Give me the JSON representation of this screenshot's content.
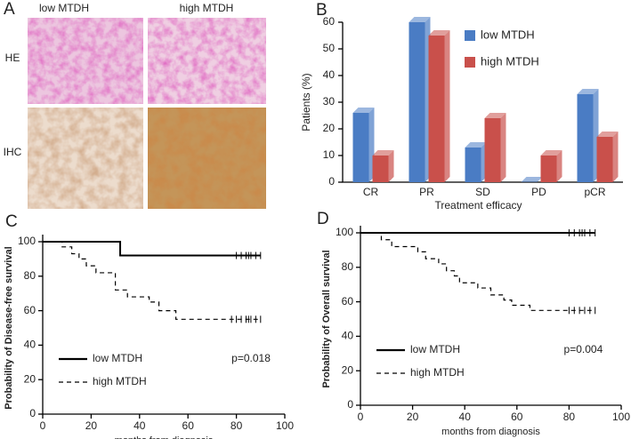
{
  "image_panel": {
    "panel_label": "A",
    "columns": [
      "low MTDH",
      "high MTDH"
    ],
    "rows": [
      "HE",
      "IHC"
    ]
  },
  "chart_data": [
    {
      "type": "bar",
      "panel_label": "B",
      "ylabel": "Patients (%)",
      "xlabel": "Treatment efficacy",
      "categories": [
        "CR",
        "PR",
        "SD",
        "PD",
        "pCR"
      ],
      "series": [
        {
          "name": "low MTDH",
          "color": "#4a7cc4",
          "values": [
            26,
            60,
            13,
            0,
            33
          ]
        },
        {
          "name": "high MTDH",
          "color": "#c9504b",
          "values": [
            10,
            55,
            24,
            10,
            17
          ]
        }
      ],
      "ylim": [
        0,
        60
      ],
      "yticks": [
        0,
        10,
        20,
        30,
        40,
        50,
        60
      ],
      "legend": "upper right"
    },
    {
      "type": "line",
      "panel_label": "C",
      "ylabel": "Probability of Disease-free survival",
      "xlabel": "months from diagnosis",
      "annotation": "p=0.018",
      "legend": "lower left",
      "xlim": [
        0,
        100
      ],
      "xticks": [
        0,
        20,
        40,
        60,
        80,
        100
      ],
      "ylim": [
        0,
        100
      ],
      "yticks": [
        0,
        20,
        40,
        60,
        80,
        100
      ],
      "series": [
        {
          "name": "low MTDH",
          "color": "#000000",
          "linestyle": "solid",
          "x": [
            0,
            32,
            32,
            90
          ],
          "values": [
            100,
            100,
            92,
            92
          ],
          "censored": {
            "x": [
              80,
              82,
              84,
              85,
              86,
              88,
              90
            ],
            "values": [
              92,
              92,
              92,
              92,
              92,
              92,
              92
            ]
          }
        },
        {
          "name": "high MTDH",
          "color": "#000000",
          "linestyle": "dashed",
          "x": [
            0,
            8,
            8,
            12,
            12,
            15,
            15,
            18,
            18,
            22,
            22,
            30,
            30,
            35,
            35,
            44,
            44,
            48,
            48,
            55,
            55,
            90
          ],
          "values": [
            100,
            100,
            97,
            97,
            93,
            93,
            90,
            90,
            86,
            86,
            82,
            82,
            72,
            72,
            68,
            68,
            65,
            65,
            60,
            60,
            55,
            55
          ],
          "censored": {
            "x": [
              78,
              80,
              82,
              84,
              85,
              86,
              88,
              90
            ],
            "values": [
              55,
              55,
              55,
              55,
              55,
              55,
              55,
              55
            ]
          }
        }
      ]
    },
    {
      "type": "line",
      "panel_label": "D",
      "ylabel": "Probability of Overall survival",
      "xlabel": "months from diagnosis",
      "annotation": "p=0.004",
      "legend": "lower left",
      "xlim": [
        0,
        100
      ],
      "xticks": [
        0,
        20,
        40,
        60,
        80,
        100
      ],
      "ylim": [
        0,
        100
      ],
      "yticks": [
        0,
        20,
        40,
        60,
        80,
        100
      ],
      "series": [
        {
          "name": "low MTDH",
          "color": "#000000",
          "linestyle": "solid",
          "x": [
            0,
            90
          ],
          "values": [
            100,
            100
          ],
          "censored": {
            "x": [
              80,
              82,
              84,
              85,
              86,
              88,
              90
            ],
            "values": [
              100,
              100,
              100,
              100,
              100,
              100,
              100
            ]
          }
        },
        {
          "name": "high MTDH",
          "color": "#000000",
          "linestyle": "dashed",
          "x": [
            0,
            8,
            8,
            12,
            12,
            22,
            22,
            25,
            25,
            30,
            30,
            33,
            33,
            36,
            36,
            38,
            38,
            45,
            45,
            50,
            50,
            55,
            55,
            58,
            58,
            65,
            65,
            90
          ],
          "values": [
            100,
            100,
            96,
            96,
            92,
            92,
            89,
            89,
            85,
            85,
            82,
            82,
            78,
            78,
            75,
            75,
            71,
            71,
            68,
            68,
            64,
            64,
            61,
            61,
            58,
            58,
            55,
            55
          ],
          "censored": {
            "x": [
              80,
              82,
              84,
              86,
              88,
              90
            ],
            "values": [
              55,
              55,
              55,
              55,
              55,
              55
            ]
          }
        }
      ]
    }
  ]
}
